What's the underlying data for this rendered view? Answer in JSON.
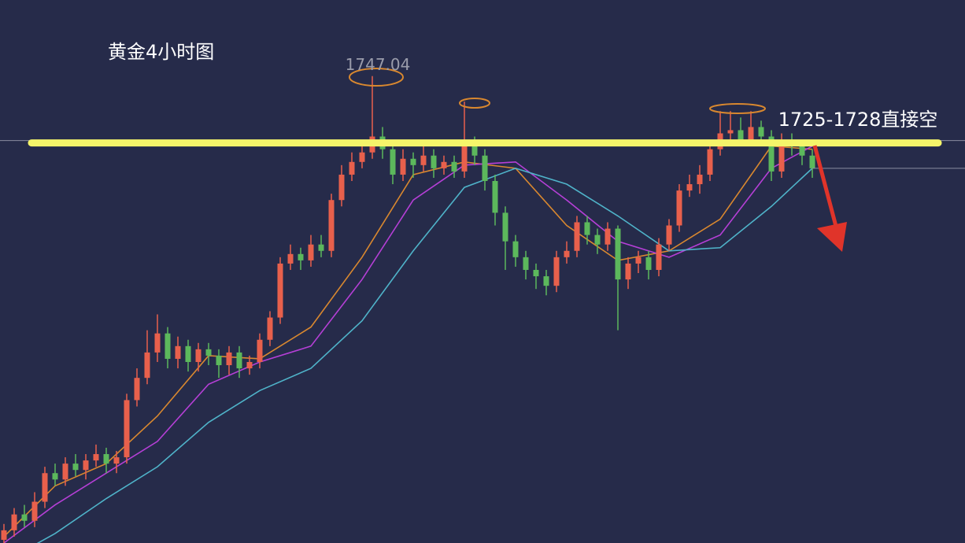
{
  "chart_data": {
    "type": "candlestick",
    "title": "黄金4小时图",
    "high_label": "1747.04",
    "annotation": "1725-1728直接空",
    "ylim": [
      1600,
      1771
    ],
    "up_color": "#e8604c",
    "down_color": "#5cb85c",
    "open": [
      1601,
      1604,
      1609,
      1607,
      1613,
      1622,
      1620,
      1625,
      1623,
      1626,
      1628,
      1625,
      1627,
      1645,
      1652,
      1660,
      1666,
      1658,
      1662,
      1657,
      1661,
      1659,
      1656,
      1660,
      1655,
      1657,
      1664,
      1671,
      1688,
      1691,
      1689,
      1694,
      1692,
      1708,
      1716,
      1720,
      1723,
      1728,
      1724,
      1716,
      1721,
      1719,
      1722,
      1718,
      1720,
      1717,
      1726,
      1722,
      1714,
      1704,
      1695,
      1690,
      1686,
      1684,
      1681,
      1690,
      1692,
      1701,
      1697,
      1694,
      1699,
      1683,
      1688,
      1690,
      1686,
      1694,
      1700,
      1711,
      1713,
      1716,
      1724,
      1729,
      1730,
      1727,
      1731,
      1728,
      1717,
      1727,
      1725,
      1722
    ],
    "high": [
      1606,
      1611,
      1612,
      1616,
      1624,
      1625,
      1627,
      1628,
      1628,
      1631,
      1630,
      1629,
      1647,
      1655,
      1667,
      1672,
      1668,
      1665,
      1664,
      1663,
      1663,
      1661,
      1662,
      1662,
      1659,
      1666,
      1673,
      1690,
      1694,
      1693,
      1697,
      1697,
      1710,
      1719,
      1723,
      1726,
      1747.04,
      1731,
      1726,
      1724,
      1723,
      1725,
      1724,
      1722,
      1722,
      1739,
      1728,
      1724,
      1716,
      1706,
      1697,
      1692,
      1688,
      1686,
      1692,
      1695,
      1703,
      1703,
      1699,
      1701,
      1700,
      1690,
      1692,
      1692,
      1696,
      1702,
      1713,
      1716,
      1719,
      1727,
      1736,
      1736,
      1734,
      1736,
      1733,
      1730,
      1729,
      1729,
      1727,
      1724
    ],
    "low": [
      1598,
      1602,
      1605,
      1605,
      1611,
      1618,
      1618,
      1621,
      1620,
      1624,
      1622,
      1622,
      1625,
      1643,
      1650,
      1657,
      1655,
      1655,
      1654,
      1654,
      1656,
      1652,
      1653,
      1652,
      1653,
      1655,
      1662,
      1669,
      1686,
      1686,
      1687,
      1690,
      1690,
      1706,
      1714,
      1718,
      1721,
      1721,
      1713,
      1714,
      1715,
      1717,
      1715,
      1716,
      1715,
      1715,
      1719,
      1711,
      1700,
      1686,
      1687,
      1683,
      1680,
      1678,
      1679,
      1688,
      1690,
      1694,
      1691,
      1692,
      1667,
      1680,
      1685,
      1683,
      1684,
      1692,
      1698,
      1709,
      1710,
      1714,
      1722,
      1727,
      1725,
      1725,
      1725,
      1714,
      1715,
      1722,
      1719,
      1715
    ],
    "close": [
      1604,
      1609,
      1607,
      1613,
      1622,
      1620,
      1625,
      1623,
      1626,
      1628,
      1625,
      1627,
      1645,
      1652,
      1660,
      1666,
      1658,
      1662,
      1657,
      1661,
      1659,
      1656,
      1660,
      1655,
      1657,
      1664,
      1671,
      1688,
      1691,
      1689,
      1694,
      1692,
      1708,
      1716,
      1720,
      1723,
      1728,
      1724,
      1716,
      1721,
      1719,
      1722,
      1718,
      1720,
      1717,
      1726,
      1722,
      1714,
      1704,
      1695,
      1690,
      1686,
      1684,
      1681,
      1690,
      1692,
      1701,
      1697,
      1694,
      1699,
      1683,
      1688,
      1690,
      1686,
      1694,
      1700,
      1711,
      1713,
      1716,
      1724,
      1729,
      1730,
      1727,
      1731,
      1728,
      1717,
      1727,
      1725,
      1722,
      1718
    ],
    "lines": [
      {
        "color": "#d9882f",
        "x": [
          0,
          5,
          10,
          15,
          20,
          25,
          30,
          35,
          40,
          45,
          50,
          55,
          60,
          65,
          70,
          75,
          79
        ],
        "values": [
          1602,
          1618,
          1625,
          1640,
          1659,
          1658,
          1668,
          1690,
          1716,
          1720,
          1718,
          1700,
          1689,
          1692,
          1702,
          1725,
          1724
        ]
      },
      {
        "color": "#b53fd6",
        "x": [
          0,
          5,
          10,
          15,
          20,
          25,
          30,
          35,
          40,
          45,
          50,
          55,
          60,
          65,
          70,
          75,
          79
        ],
        "values": [
          1600,
          1612,
          1622,
          1632,
          1650,
          1657,
          1662,
          1683,
          1708,
          1719,
          1720,
          1708,
          1695,
          1690,
          1697,
          1718,
          1725
        ]
      },
      {
        "color": "#4fb3c9",
        "x": [
          0,
          5,
          10,
          15,
          20,
          25,
          30,
          35,
          40,
          45,
          50,
          55,
          60,
          65,
          70,
          75,
          79
        ],
        "values": [
          1594,
          1603,
          1614,
          1624,
          1638,
          1648,
          1655,
          1670,
          1692,
          1712,
          1718,
          1713,
          1703,
          1692,
          1693,
          1706,
          1718
        ]
      }
    ],
    "level": 1726,
    "level_color": "#f5f56a"
  }
}
